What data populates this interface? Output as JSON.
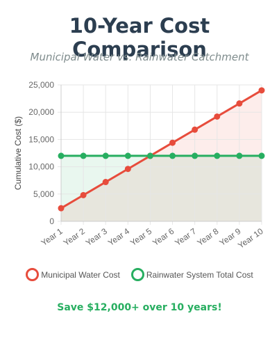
{
  "title": "10-Year Cost Comparison",
  "subtitle": "Municipal Water vs. Rainwater Catchment",
  "savings_text": "Save $12,000+ over 10 years!",
  "colors": {
    "municipal": "#e74c3c",
    "rainwater": "#27ae60",
    "municipal_fill": "rgba(231,76,60,0.10)",
    "rainwater_fill": "rgba(39,174,96,0.10)",
    "grid": "#e6e6e6",
    "savings": "#27ae60"
  },
  "chart_data": {
    "type": "line",
    "title": "",
    "xlabel": "",
    "ylabel": "Cumulative Cost ($)",
    "categories": [
      "Year 1",
      "Year 2",
      "Year 3",
      "Year 4",
      "Year 5",
      "Year 6",
      "Year 7",
      "Year 8",
      "Year 9",
      "Year 10"
    ],
    "ylim": [
      0,
      25000
    ],
    "yticks": [
      0,
      5000,
      10000,
      15000,
      20000,
      25000
    ],
    "ytick_labels": [
      "0",
      "5,000",
      "10,000",
      "15,000",
      "20,000",
      "25,000"
    ],
    "grid": true,
    "legend_position": "bottom",
    "series": [
      {
        "name": "Municipal Water Cost",
        "values": [
          2400,
          4800,
          7200,
          9600,
          12000,
          14400,
          16800,
          19200,
          21600,
          24000
        ],
        "color": "#e74c3c"
      },
      {
        "name": "Rainwater System Total Cost",
        "values": [
          12000,
          12000,
          12000,
          12000,
          12000,
          12000,
          12000,
          12000,
          12000,
          12000
        ],
        "color": "#27ae60"
      }
    ]
  }
}
